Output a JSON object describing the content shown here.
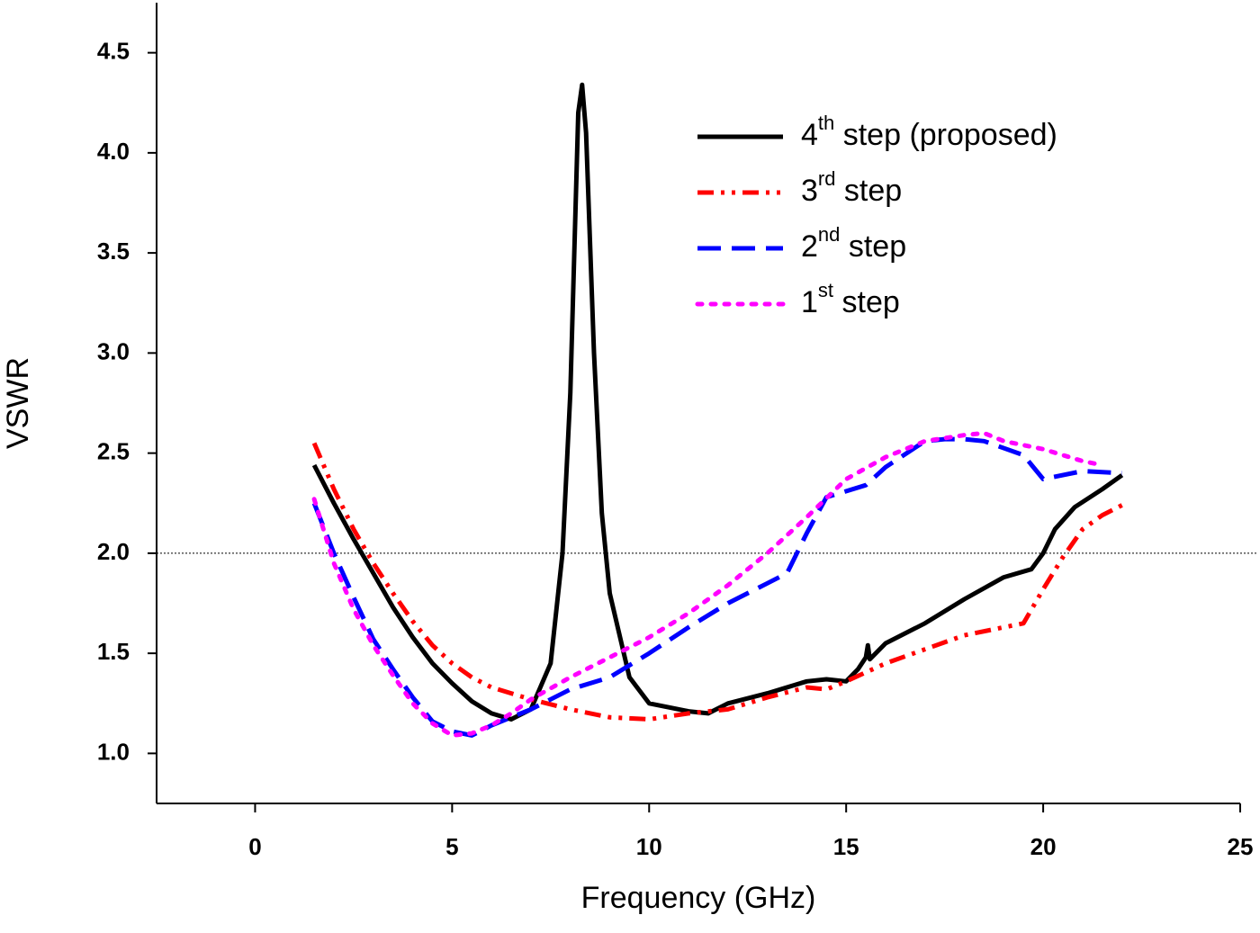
{
  "chart_data": {
    "type": "line",
    "x_label": "Frequency (GHz)",
    "y_label": "VSWR",
    "xlim": [
      -2.5,
      25
    ],
    "ylim": [
      0.75,
      4.75
    ],
    "xticks": [
      0,
      5,
      10,
      15,
      20,
      25
    ],
    "yticks": [
      1.0,
      1.5,
      2.0,
      2.5,
      3.0,
      3.5,
      4.0,
      4.5
    ],
    "reference_line": 2.0,
    "legend": "upper-right",
    "series": [
      {
        "name": "4th step (proposed)",
        "color": "#000000",
        "style": "solid",
        "x": [
          1.5,
          2,
          2.5,
          3,
          3.5,
          4,
          4.5,
          5,
          5.5,
          6,
          6.5,
          7,
          7.5,
          7.8,
          8,
          8.2,
          8.3,
          8.4,
          8.6,
          8.8,
          9,
          9.5,
          10,
          10.5,
          11,
          11.5,
          12,
          13,
          14,
          14.5,
          15,
          15.3,
          15.5,
          15.55,
          15.6,
          16,
          17,
          18,
          19,
          19.7,
          20,
          20.3,
          20.8,
          21.5,
          22
        ],
        "values": [
          2.44,
          2.25,
          2.07,
          1.9,
          1.73,
          1.58,
          1.45,
          1.35,
          1.26,
          1.2,
          1.17,
          1.22,
          1.45,
          2.0,
          2.8,
          4.2,
          4.34,
          4.1,
          3.0,
          2.2,
          1.8,
          1.38,
          1.25,
          1.23,
          1.21,
          1.2,
          1.25,
          1.3,
          1.36,
          1.37,
          1.36,
          1.42,
          1.48,
          1.54,
          1.47,
          1.55,
          1.65,
          1.77,
          1.88,
          1.92,
          2.0,
          2.12,
          2.23,
          2.32,
          2.39
        ]
      },
      {
        "name": "3rd step",
        "color": "#ff0000",
        "style": "dashdotdot",
        "x": [
          1.5,
          2,
          2.5,
          3,
          3.5,
          4,
          4.5,
          5,
          5.5,
          6,
          7,
          8,
          9,
          10,
          11,
          12,
          13,
          14,
          14.5,
          15,
          16,
          17,
          18,
          19,
          19.5,
          20,
          20.5,
          21,
          21.5,
          22
        ],
        "values": [
          2.55,
          2.32,
          2.12,
          1.95,
          1.8,
          1.66,
          1.54,
          1.45,
          1.38,
          1.33,
          1.27,
          1.22,
          1.18,
          1.17,
          1.2,
          1.22,
          1.28,
          1.33,
          1.32,
          1.36,
          1.45,
          1.52,
          1.59,
          1.63,
          1.65,
          1.82,
          1.98,
          2.12,
          2.19,
          2.24
        ]
      },
      {
        "name": "2nd step",
        "color": "#0000ff",
        "style": "dashed",
        "x": [
          1.5,
          2,
          2.5,
          3,
          3.5,
          4,
          4.5,
          5,
          5.5,
          6,
          7,
          8,
          9,
          10,
          11,
          12,
          13,
          13.5,
          14,
          14.5,
          15.5,
          16,
          17,
          17.5,
          18,
          18.5,
          19.5,
          20,
          21,
          22
        ],
        "values": [
          2.25,
          2.0,
          1.78,
          1.57,
          1.42,
          1.28,
          1.16,
          1.11,
          1.09,
          1.14,
          1.22,
          1.32,
          1.38,
          1.5,
          1.63,
          1.75,
          1.85,
          1.9,
          2.1,
          2.28,
          2.34,
          2.43,
          2.56,
          2.57,
          2.57,
          2.56,
          2.49,
          2.37,
          2.41,
          2.4
        ]
      },
      {
        "name": "1st step",
        "color": "#ff00ff",
        "style": "dotted",
        "x": [
          1.5,
          2,
          2.5,
          3,
          3.5,
          4,
          4.5,
          5,
          5.5,
          6,
          6.5,
          7,
          8,
          9,
          10,
          11,
          12,
          13,
          14,
          15,
          16,
          17,
          18,
          18.5,
          19,
          20,
          21,
          21.5
        ],
        "values": [
          2.27,
          1.95,
          1.72,
          1.54,
          1.39,
          1.25,
          1.15,
          1.09,
          1.1,
          1.14,
          1.2,
          1.27,
          1.38,
          1.48,
          1.58,
          1.7,
          1.84,
          2.0,
          2.18,
          2.37,
          2.48,
          2.56,
          2.59,
          2.6,
          2.56,
          2.52,
          2.46,
          2.44
        ]
      }
    ]
  }
}
